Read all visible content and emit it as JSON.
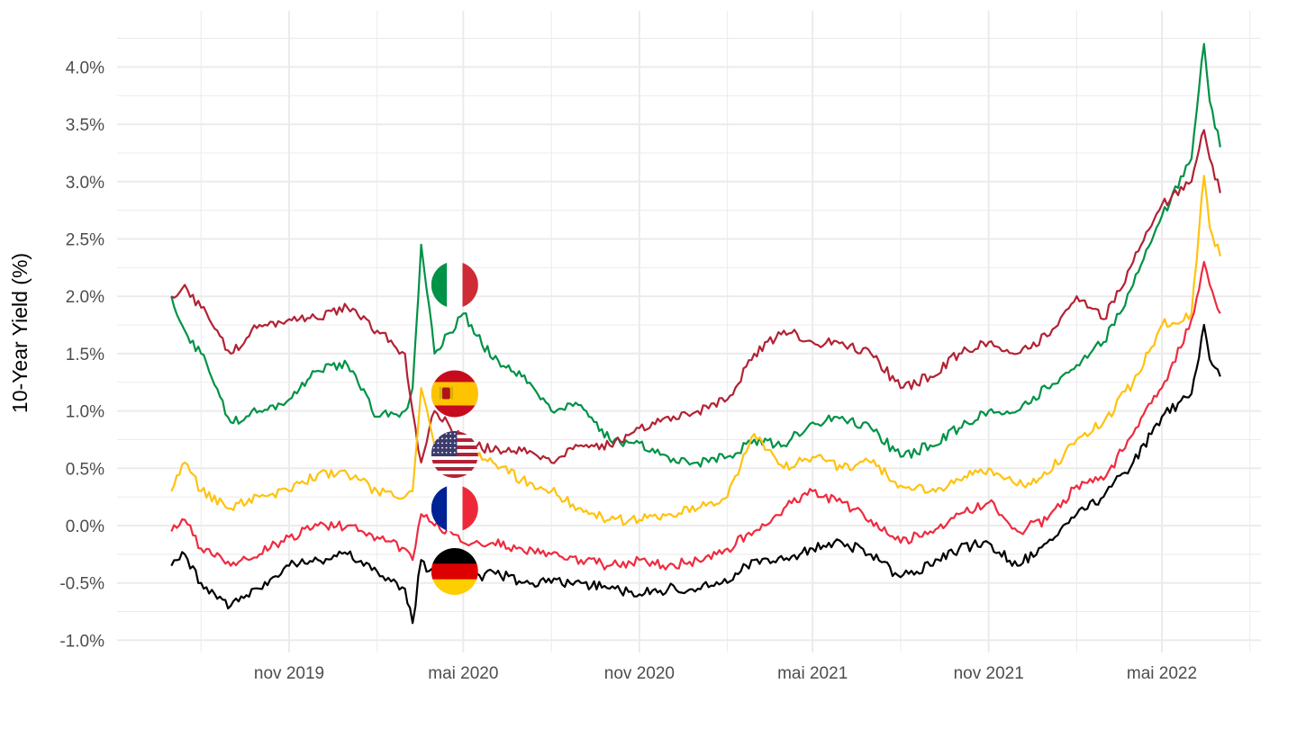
{
  "chart_data": {
    "type": "line",
    "title": "",
    "xlabel": "",
    "ylabel": "10-Year Yield (%)",
    "ylim": [
      -1.0,
      4.0
    ],
    "yticks": [
      "-1.0%",
      "-0.5%",
      "0.0%",
      "0.5%",
      "1.0%",
      "1.5%",
      "2.0%",
      "2.5%",
      "3.0%",
      "3.5%",
      "4.0%"
    ],
    "ytick_values": [
      -1.0,
      -0.5,
      0.0,
      0.5,
      1.0,
      1.5,
      2.0,
      2.5,
      3.0,
      3.5,
      4.0
    ],
    "xticks": [
      {
        "date": "2019-11-01",
        "label": "nov 2019"
      },
      {
        "date": "2020-05-01",
        "label": "mai 2020"
      },
      {
        "date": "2020-11-01",
        "label": "nov 2020"
      },
      {
        "date": "2021-05-01",
        "label": "mai 2021"
      },
      {
        "date": "2021-11-01",
        "label": "nov 2021"
      },
      {
        "date": "2022-05-01",
        "label": "mai 2022"
      }
    ],
    "grid": true,
    "legend": "flag icons inline near mai 2020",
    "x": [
      "2019-07-01",
      "2019-07-15",
      "2019-08-01",
      "2019-09-01",
      "2019-10-01",
      "2019-11-01",
      "2019-12-01",
      "2020-01-01",
      "2020-02-01",
      "2020-03-01",
      "2020-03-09",
      "2020-03-18",
      "2020-04-01",
      "2020-05-01",
      "2020-06-01",
      "2020-07-01",
      "2020-08-01",
      "2020-09-01",
      "2020-10-01",
      "2020-11-01",
      "2020-12-01",
      "2021-01-01",
      "2021-02-01",
      "2021-03-01",
      "2021-04-01",
      "2021-05-01",
      "2021-06-01",
      "2021-07-01",
      "2021-08-01",
      "2021-09-01",
      "2021-10-01",
      "2021-11-01",
      "2021-12-01",
      "2022-01-01",
      "2022-02-01",
      "2022-03-01",
      "2022-04-01",
      "2022-05-01",
      "2022-06-01",
      "2022-06-14",
      "2022-06-20",
      "2022-07-01"
    ],
    "series": [
      {
        "name": "Italy",
        "flag": "italy-flag",
        "color": "#009246",
        "values": [
          2.0,
          1.7,
          1.5,
          0.9,
          1.0,
          1.1,
          1.35,
          1.4,
          0.95,
          1.0,
          1.2,
          2.45,
          1.5,
          1.85,
          1.45,
          1.3,
          1.0,
          1.05,
          0.75,
          0.72,
          0.6,
          0.55,
          0.6,
          0.75,
          0.7,
          0.9,
          0.95,
          0.85,
          0.6,
          0.7,
          0.85,
          1.0,
          1.0,
          1.2,
          1.4,
          1.6,
          2.1,
          2.7,
          3.2,
          4.2,
          3.7,
          3.3
        ]
      },
      {
        "name": "Spain",
        "flag": "spain-flag",
        "color": "#b22234",
        "values": [
          2.0,
          2.1,
          1.9,
          1.5,
          1.75,
          1.8,
          1.8,
          1.9,
          1.7,
          1.5,
          1.0,
          0.55,
          1.0,
          0.75,
          0.65,
          0.65,
          0.55,
          0.7,
          0.7,
          0.85,
          0.95,
          1.0,
          1.1,
          1.5,
          1.7,
          1.6,
          1.6,
          1.5,
          1.2,
          1.3,
          1.5,
          1.6,
          1.5,
          1.65,
          2.0,
          1.8,
          2.3,
          2.8,
          3.0,
          3.45,
          3.2,
          2.9
        ]
      },
      {
        "name": "United States",
        "flag": "us-flag",
        "color": "#ffc20e",
        "values": [
          0.3,
          0.55,
          0.3,
          0.15,
          0.25,
          0.3,
          0.45,
          0.45,
          0.3,
          0.25,
          0.3,
          1.2,
          0.7,
          0.7,
          0.55,
          0.4,
          0.3,
          0.15,
          0.05,
          0.05,
          0.1,
          0.15,
          0.25,
          0.8,
          0.5,
          0.6,
          0.5,
          0.55,
          0.35,
          0.3,
          0.4,
          0.5,
          0.35,
          0.45,
          0.75,
          0.9,
          1.25,
          1.75,
          1.85,
          3.05,
          2.6,
          2.35
        ]
      },
      {
        "name": "France",
        "flag": "france-flag",
        "color": "#ef2b3f",
        "values": [
          -0.05,
          0.05,
          -0.2,
          -0.35,
          -0.25,
          -0.1,
          0.0,
          0.0,
          -0.1,
          -0.2,
          -0.3,
          0.1,
          0.0,
          -0.15,
          -0.15,
          -0.2,
          -0.25,
          -0.3,
          -0.35,
          -0.3,
          -0.35,
          -0.3,
          -0.2,
          -0.05,
          0.15,
          0.3,
          0.2,
          0.05,
          -0.15,
          -0.05,
          0.1,
          0.2,
          -0.05,
          0.05,
          0.35,
          0.4,
          0.8,
          1.2,
          1.8,
          2.3,
          2.1,
          1.85
        ]
      },
      {
        "name": "Germany",
        "flag": "germany-flag",
        "color": "#000000",
        "values": [
          -0.35,
          -0.25,
          -0.5,
          -0.7,
          -0.55,
          -0.35,
          -0.3,
          -0.25,
          -0.4,
          -0.55,
          -0.85,
          -0.3,
          -0.45,
          -0.5,
          -0.4,
          -0.5,
          -0.5,
          -0.5,
          -0.55,
          -0.6,
          -0.55,
          -0.55,
          -0.5,
          -0.3,
          -0.3,
          -0.2,
          -0.15,
          -0.25,
          -0.45,
          -0.35,
          -0.2,
          -0.15,
          -0.35,
          -0.15,
          0.1,
          0.25,
          0.55,
          0.95,
          1.15,
          1.75,
          1.45,
          1.3
        ]
      }
    ],
    "flag_anchor_date": "2020-04-22",
    "flag_values": [
      2.1,
      1.15,
      0.62,
      0.15,
      -0.4
    ]
  }
}
